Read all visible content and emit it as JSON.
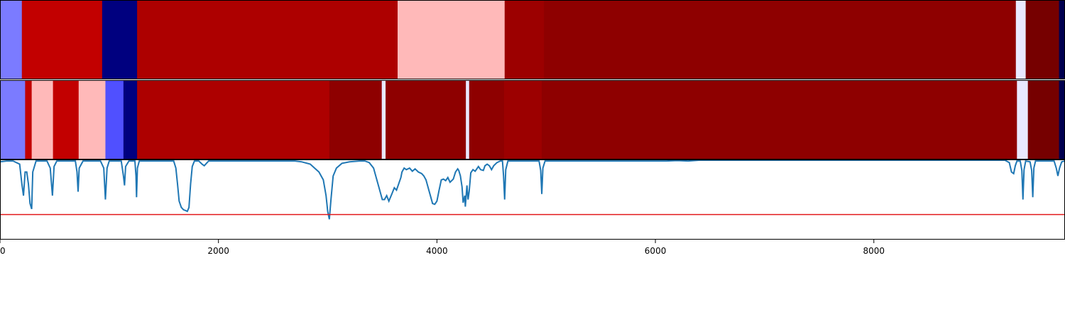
{
  "chart_data": {
    "type": "heatmap",
    "x_axis": {
      "ticks": [
        0,
        2000,
        4000,
        6000,
        8000
      ],
      "tick_labels": [
        "0",
        "2000",
        "4000",
        "6000",
        "8000"
      ],
      "range": [
        0,
        9750
      ]
    },
    "heatmap_rows": [
      {
        "segments": [
          {
            "start": 0,
            "end": 200,
            "color": "#7b7bff"
          },
          {
            "start": 200,
            "end": 935,
            "color": "#c20000"
          },
          {
            "start": 935,
            "end": 1255,
            "color": "#00007f"
          },
          {
            "start": 1255,
            "end": 3640,
            "color": "#ad0000"
          },
          {
            "start": 3640,
            "end": 4620,
            "color": "#ffb9b9"
          },
          {
            "start": 4620,
            "end": 4980,
            "color": "#9c0000"
          },
          {
            "start": 4980,
            "end": 9300,
            "color": "#8e0000"
          },
          {
            "start": 9300,
            "end": 9390,
            "color": "#e9e9ff"
          },
          {
            "start": 9390,
            "end": 9695,
            "color": "#760000"
          },
          {
            "start": 9695,
            "end": 9750,
            "color": "#000050"
          }
        ]
      },
      {
        "segments": [
          {
            "start": 0,
            "end": 230,
            "color": "#7b7bff"
          },
          {
            "start": 230,
            "end": 290,
            "color": "#c20000"
          },
          {
            "start": 290,
            "end": 485,
            "color": "#ffb9b9"
          },
          {
            "start": 485,
            "end": 720,
            "color": "#c20000"
          },
          {
            "start": 720,
            "end": 965,
            "color": "#ffb9b9"
          },
          {
            "start": 965,
            "end": 1130,
            "color": "#5050ff"
          },
          {
            "start": 1130,
            "end": 1255,
            "color": "#00007f"
          },
          {
            "start": 1255,
            "end": 1665,
            "color": "#ad0000"
          },
          {
            "start": 1665,
            "end": 3015,
            "color": "#ad0000"
          },
          {
            "start": 3015,
            "end": 3495,
            "color": "#8e0000"
          },
          {
            "start": 3495,
            "end": 3530,
            "color": "#e9e9ff"
          },
          {
            "start": 3530,
            "end": 4265,
            "color": "#8e0000"
          },
          {
            "start": 4265,
            "end": 4295,
            "color": "#e9e9ff"
          },
          {
            "start": 4295,
            "end": 4615,
            "color": "#8e0000"
          },
          {
            "start": 4615,
            "end": 4960,
            "color": "#9c0000"
          },
          {
            "start": 4960,
            "end": 9310,
            "color": "#8e0000"
          },
          {
            "start": 9310,
            "end": 9410,
            "color": "#e9e9ff"
          },
          {
            "start": 9410,
            "end": 9695,
            "color": "#760000"
          },
          {
            "start": 9695,
            "end": 9750,
            "color": "#000050"
          }
        ]
      }
    ],
    "line_series": {
      "color": "#1f77b4",
      "ylim": [
        0,
        1
      ],
      "points": [
        [
          0,
          0.98
        ],
        [
          60,
          0.99
        ],
        [
          120,
          0.99
        ],
        [
          180,
          0.95
        ],
        [
          200,
          0.7
        ],
        [
          215,
          0.55
        ],
        [
          230,
          0.85
        ],
        [
          245,
          0.85
        ],
        [
          260,
          0.7
        ],
        [
          275,
          0.45
        ],
        [
          290,
          0.38
        ],
        [
          300,
          0.85
        ],
        [
          330,
          0.99
        ],
        [
          430,
          0.99
        ],
        [
          460,
          0.9
        ],
        [
          480,
          0.55
        ],
        [
          495,
          0.92
        ],
        [
          520,
          0.99
        ],
        [
          690,
          0.99
        ],
        [
          705,
          0.85
        ],
        [
          715,
          0.6
        ],
        [
          725,
          0.9
        ],
        [
          760,
          0.99
        ],
        [
          920,
          0.99
        ],
        [
          950,
          0.9
        ],
        [
          965,
          0.5
        ],
        [
          980,
          0.9
        ],
        [
          1000,
          0.99
        ],
        [
          1110,
          0.99
        ],
        [
          1130,
          0.8
        ],
        [
          1140,
          0.68
        ],
        [
          1150,
          0.92
        ],
        [
          1180,
          0.99
        ],
        [
          1235,
          0.99
        ],
        [
          1245,
          0.8
        ],
        [
          1250,
          0.53
        ],
        [
          1258,
          0.9
        ],
        [
          1275,
          0.99
        ],
        [
          1590,
          0.99
        ],
        [
          1610,
          0.9
        ],
        [
          1625,
          0.7
        ],
        [
          1640,
          0.48
        ],
        [
          1660,
          0.4
        ],
        [
          1680,
          0.37
        ],
        [
          1700,
          0.36
        ],
        [
          1715,
          0.35
        ],
        [
          1730,
          0.4
        ],
        [
          1745,
          0.7
        ],
        [
          1760,
          0.92
        ],
        [
          1780,
          0.99
        ],
        [
          1820,
          0.99
        ],
        [
          1850,
          0.95
        ],
        [
          1870,
          0.93
        ],
        [
          1890,
          0.96
        ],
        [
          1910,
          0.99
        ],
        [
          2700,
          0.99
        ],
        [
          2760,
          0.98
        ],
        [
          2840,
          0.95
        ],
        [
          2880,
          0.9
        ],
        [
          2920,
          0.85
        ],
        [
          2960,
          0.75
        ],
        [
          2985,
          0.55
        ],
        [
          3000,
          0.35
        ],
        [
          3015,
          0.25
        ],
        [
          3030,
          0.5
        ],
        [
          3050,
          0.8
        ],
        [
          3080,
          0.9
        ],
        [
          3130,
          0.96
        ],
        [
          3200,
          0.98
        ],
        [
          3290,
          0.99
        ],
        [
          3340,
          0.99
        ],
        [
          3380,
          0.97
        ],
        [
          3420,
          0.9
        ],
        [
          3450,
          0.75
        ],
        [
          3480,
          0.6
        ],
        [
          3500,
          0.5
        ],
        [
          3520,
          0.5
        ],
        [
          3540,
          0.55
        ],
        [
          3560,
          0.48
        ],
        [
          3590,
          0.58
        ],
        [
          3610,
          0.65
        ],
        [
          3630,
          0.62
        ],
        [
          3650,
          0.7
        ],
        [
          3670,
          0.78
        ],
        [
          3680,
          0.85
        ],
        [
          3700,
          0.9
        ],
        [
          3720,
          0.88
        ],
        [
          3750,
          0.9
        ],
        [
          3775,
          0.86
        ],
        [
          3800,
          0.89
        ],
        [
          3830,
          0.85
        ],
        [
          3860,
          0.83
        ],
        [
          3880,
          0.8
        ],
        [
          3900,
          0.75
        ],
        [
          3920,
          0.65
        ],
        [
          3940,
          0.55
        ],
        [
          3960,
          0.45
        ],
        [
          3980,
          0.44
        ],
        [
          4000,
          0.48
        ],
        [
          4020,
          0.62
        ],
        [
          4040,
          0.75
        ],
        [
          4060,
          0.76
        ],
        [
          4080,
          0.74
        ],
        [
          4100,
          0.78
        ],
        [
          4120,
          0.72
        ],
        [
          4150,
          0.76
        ],
        [
          4170,
          0.85
        ],
        [
          4190,
          0.89
        ],
        [
          4200,
          0.87
        ],
        [
          4215,
          0.8
        ],
        [
          4230,
          0.66
        ],
        [
          4240,
          0.46
        ],
        [
          4255,
          0.55
        ],
        [
          4260,
          0.41
        ],
        [
          4275,
          0.68
        ],
        [
          4285,
          0.5
        ],
        [
          4295,
          0.6
        ],
        [
          4310,
          0.84
        ],
        [
          4330,
          0.88
        ],
        [
          4350,
          0.86
        ],
        [
          4380,
          0.92
        ],
        [
          4400,
          0.88
        ],
        [
          4425,
          0.87
        ],
        [
          4440,
          0.93
        ],
        [
          4460,
          0.95
        ],
        [
          4480,
          0.93
        ],
        [
          4500,
          0.88
        ],
        [
          4520,
          0.93
        ],
        [
          4550,
          0.97
        ],
        [
          4580,
          0.99
        ],
        [
          4600,
          0.99
        ],
        [
          4610,
          0.8
        ],
        [
          4620,
          0.5
        ],
        [
          4630,
          0.88
        ],
        [
          4650,
          0.99
        ],
        [
          4935,
          0.99
        ],
        [
          4950,
          0.87
        ],
        [
          4960,
          0.57
        ],
        [
          4970,
          0.9
        ],
        [
          4990,
          0.99
        ],
        [
          6100,
          0.99
        ],
        [
          6200,
          0.995
        ],
        [
          6300,
          0.99
        ],
        [
          6400,
          1.0
        ],
        [
          9200,
          1.0
        ],
        [
          9240,
          0.97
        ],
        [
          9260,
          0.85
        ],
        [
          9280,
          0.83
        ],
        [
          9295,
          0.93
        ],
        [
          9310,
          0.99
        ],
        [
          9340,
          0.99
        ],
        [
          9355,
          0.87
        ],
        [
          9365,
          0.5
        ],
        [
          9375,
          0.88
        ],
        [
          9390,
          0.99
        ],
        [
          9430,
          0.98
        ],
        [
          9445,
          0.87
        ],
        [
          9455,
          0.53
        ],
        [
          9465,
          0.9
        ],
        [
          9480,
          0.99
        ],
        [
          9650,
          0.99
        ],
        [
          9670,
          0.9
        ],
        [
          9685,
          0.8
        ],
        [
          9700,
          0.9
        ],
        [
          9720,
          0.98
        ],
        [
          9750,
          0.99
        ]
      ]
    },
    "threshold_line": {
      "y": 0.31,
      "color": "#e31a1c"
    }
  }
}
